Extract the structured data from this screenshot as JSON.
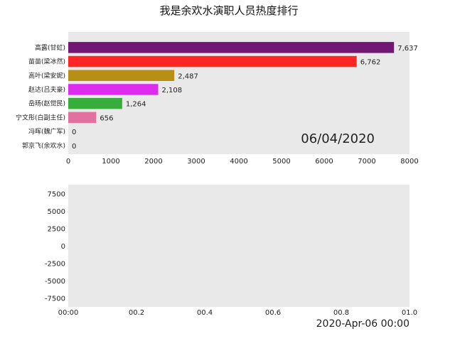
{
  "chart_data": [
    {
      "type": "bar",
      "orientation": "horizontal",
      "title": "我是余欢水演职人员热度排行",
      "categories": [
        "高露(甘虹)",
        "苗苗(梁冰然)",
        "高叶(梁安妮)",
        "赵达(吕夫豪)",
        "岳旸(赵觉民)",
        "宁文彤(白副主任)",
        "冯晖(魏广军)",
        "郭京飞(余欢水)"
      ],
      "values": [
        7637,
        6762,
        2487,
        2108,
        1264,
        656,
        0,
        0
      ],
      "value_labels": [
        "7,637",
        "6,762",
        "2,487",
        "2,108",
        "1,264",
        "656",
        "0",
        "0"
      ],
      "bar_colors": [
        "#6a0d6e",
        "#ff1a1a",
        "#b58a0a",
        "#dd22ee",
        "#2eaa32",
        "#e06a9a",
        "#888888",
        "#888888"
      ],
      "xlim": [
        0,
        8000
      ],
      "xticks": [
        "0",
        "1000",
        "2000",
        "3000",
        "4000",
        "5000",
        "6000",
        "7000",
        "8000"
      ],
      "date_label": "06/04/2020",
      "grid": false,
      "background": "#e9e9e9"
    },
    {
      "type": "line",
      "xlim": [
        0,
        1
      ],
      "ylim": [
        -8750,
        8750
      ],
      "xticks": [
        "00:00",
        "00.2",
        "00.4",
        "00.6",
        "00.8",
        "01.0"
      ],
      "yticks": [
        "7500",
        "5000",
        "2500",
        "0",
        "-2500",
        "-5000",
        "-7500"
      ],
      "series": [],
      "timestamp": "2020-Apr-06 00:00",
      "grid": false,
      "background": "#e9e9e9"
    }
  ]
}
